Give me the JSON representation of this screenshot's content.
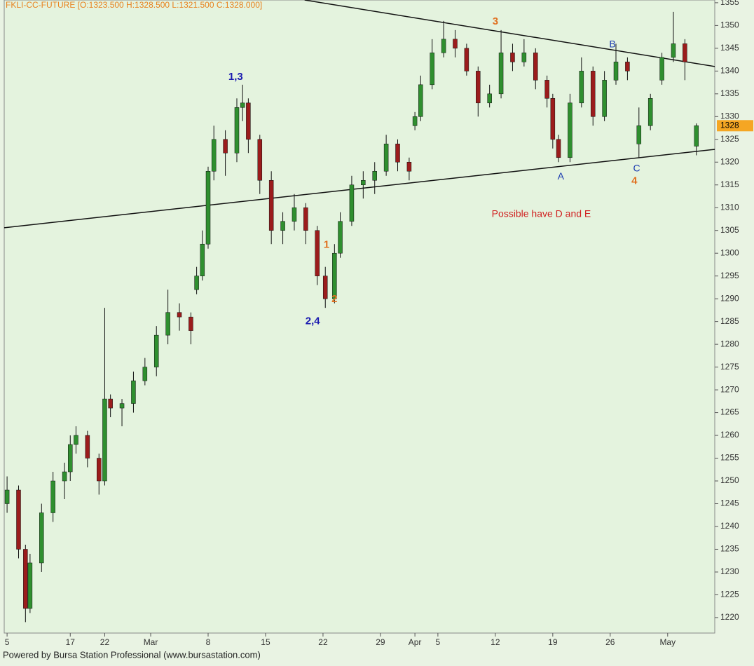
{
  "chart_data": {
    "type": "candlestick",
    "title": "FKLI-CC-FUTURE [O:1323.500 H:1328.500 L:1321.500 C:1328.000]",
    "footer": "Powered by Bursa Station Professional (www.bursastation.com)",
    "up_color": "#2f8f2f",
    "down_color": "#9b1c1c",
    "grid": false,
    "x": [
      0,
      1,
      1.6,
      2,
      3,
      4,
      5,
      5.5,
      6,
      7,
      8,
      8.5,
      9,
      10,
      11,
      12,
      13,
      14,
      15,
      16,
      16.5,
      17,
      17.5,
      18,
      19,
      20,
      20.5,
      21,
      22,
      23,
      24,
      25,
      26,
      27,
      27.7,
      28.5,
      29,
      30,
      31,
      32,
      33,
      34,
      35,
      35.5,
      36,
      37,
      38,
      39,
      40,
      41,
      42,
      43,
      44,
      45,
      46,
      47,
      47.5,
      48,
      49,
      50,
      51,
      52,
      53,
      54,
      55,
      56,
      57,
      58,
      59,
      60
    ],
    "open": [
      1245,
      1248,
      1235,
      1222,
      1232,
      1243,
      1250,
      1252,
      1258,
      1260,
      1255,
      1250,
      1268,
      1266,
      1267,
      1272,
      1275,
      1282,
      1287,
      1286,
      1292,
      1295,
      1302,
      1318,
      1325,
      1322,
      1332,
      1333,
      1325,
      1316,
      1305,
      1307,
      1310,
      1305,
      1295,
      1290,
      1300,
      1307,
      1315,
      1316,
      1318,
      1324,
      1320,
      1328,
      1330,
      1337,
      1344,
      1347,
      1345,
      1340,
      1333,
      1335,
      1344,
      1342,
      1344,
      1338,
      1334,
      1325,
      1321,
      1333,
      1340,
      1330,
      1338,
      1342,
      1324,
      1328,
      1338,
      1343,
      1346,
      1323.5
    ],
    "high": [
      1251,
      1249,
      1236,
      1234,
      1245,
      1252,
      1254,
      1260,
      1262,
      1261,
      1256,
      1288,
      1269,
      1268,
      1274,
      1277,
      1284,
      1292,
      1289,
      1287,
      1297,
      1305,
      1319,
      1328,
      1327,
      1334,
      1337,
      1334,
      1326,
      1318,
      1309,
      1313,
      1311,
      1306,
      1297,
      1302,
      1309,
      1317,
      1318,
      1320,
      1326,
      1325,
      1321,
      1331,
      1339,
      1347,
      1351,
      1349,
      1346,
      1341,
      1337,
      1349,
      1346,
      1347,
      1345,
      1339,
      1335,
      1326,
      1335,
      1343,
      1341,
      1340,
      1346,
      1343,
      1332,
      1335,
      1344,
      1353,
      1347,
      1328.5
    ],
    "low": [
      1243,
      1233,
      1219,
      1221,
      1230,
      1241,
      1246,
      1250,
      1256,
      1253,
      1247,
      1249,
      1264,
      1262,
      1265,
      1271,
      1273,
      1280,
      1283,
      1280,
      1291,
      1294,
      1301,
      1316,
      1317,
      1320,
      1329,
      1322,
      1313,
      1302,
      1302,
      1305,
      1302,
      1293,
      1288,
      1289,
      1299,
      1306,
      1312,
      1313,
      1317,
      1318,
      1316,
      1327,
      1329,
      1336,
      1343,
      1343,
      1339,
      1330,
      1332,
      1334,
      1340,
      1341,
      1336,
      1332,
      1323,
      1320,
      1320,
      1332,
      1328,
      1329,
      1337,
      1338,
      1321,
      1327,
      1337,
      1342,
      1338,
      1321.5
    ],
    "close": [
      1248,
      1235,
      1222,
      1232,
      1243,
      1250,
      1252,
      1258,
      1260,
      1255,
      1250,
      1268,
      1266,
      1267,
      1272,
      1275,
      1282,
      1287,
      1286,
      1283,
      1295,
      1302,
      1318,
      1325,
      1322,
      1332,
      1333,
      1325,
      1316,
      1305,
      1307,
      1310,
      1305,
      1295,
      1290,
      1300,
      1307,
      1315,
      1316,
      1318,
      1324,
      1320,
      1318,
      1330,
      1337,
      1344,
      1347,
      1345,
      1340,
      1333,
      1335,
      1344,
      1342,
      1344,
      1338,
      1334,
      1325,
      1321,
      1333,
      1340,
      1330,
      1338,
      1342,
      1340,
      1328,
      1334,
      1343,
      1346,
      1342,
      1328
    ],
    "xlim": [
      -0.25,
      61.6
    ],
    "ylim": [
      1216.6,
      1355.6
    ],
    "xticks": [
      {
        "value": 0,
        "label": "5"
      },
      {
        "value": 5.5,
        "label": "17"
      },
      {
        "value": 8.5,
        "label": "22"
      },
      {
        "value": 12.5,
        "label": "Mar"
      },
      {
        "value": 17.5,
        "label": "8"
      },
      {
        "value": 22.5,
        "label": "15"
      },
      {
        "value": 27.5,
        "label": "22"
      },
      {
        "value": 32.5,
        "label": "29"
      },
      {
        "value": 35.5,
        "label": "Apr"
      },
      {
        "value": 37.5,
        "label": "5"
      },
      {
        "value": 42.5,
        "label": "12"
      },
      {
        "value": 47.5,
        "label": "19"
      },
      {
        "value": 52.5,
        "label": "26"
      },
      {
        "value": 57.5,
        "label": "May"
      }
    ],
    "yticks": [
      1220,
      1225,
      1230,
      1235,
      1240,
      1245,
      1250,
      1255,
      1260,
      1265,
      1270,
      1275,
      1280,
      1285,
      1290,
      1295,
      1300,
      1305,
      1310,
      1315,
      1320,
      1325,
      1330,
      1335,
      1340,
      1345,
      1350,
      1355
    ],
    "last_price": 1328,
    "trendlines": [
      {
        "x": [
          -0.25,
          61.6
        ],
        "y": [
          1305.6,
          1322.8
        ]
      },
      {
        "x": [
          25.9,
          61.6
        ],
        "y": [
          1355.6,
          1341.0
        ]
      }
    ],
    "annotations": [
      {
        "text": "1,3",
        "x": 19.9,
        "y": 1338.7,
        "color": "#1a1ab0",
        "bold": true
      },
      {
        "text": "2,4",
        "x": 26.6,
        "y": 1285,
        "color": "#1a1ab0",
        "bold": true
      },
      {
        "text": "1",
        "x": 27.8,
        "y": 1301.8,
        "color": "#e07020",
        "bold": true
      },
      {
        "text": "2",
        "x": 28.5,
        "y": 1289.9,
        "color": "#e07020",
        "bold": true
      },
      {
        "text": "3",
        "x": 42.5,
        "y": 1350.8,
        "color": "#e07020",
        "bold": true
      },
      {
        "text": "4",
        "x": 54.6,
        "y": 1315.8,
        "color": "#e07020",
        "bold": true
      },
      {
        "text": "A",
        "x": 48.2,
        "y": 1316.8,
        "color": "#1a3ab0",
        "bold": false
      },
      {
        "text": "B",
        "x": 52.7,
        "y": 1345.8,
        "color": "#1a3ab0",
        "bold": false
      },
      {
        "text": "C",
        "x": 54.8,
        "y": 1318.5,
        "color": "#1a3ab0",
        "bold": false
      },
      {
        "text": "Possible have D and E",
        "x": 46.5,
        "y": 1308.5,
        "color": "#d02020",
        "bold": false
      }
    ]
  }
}
